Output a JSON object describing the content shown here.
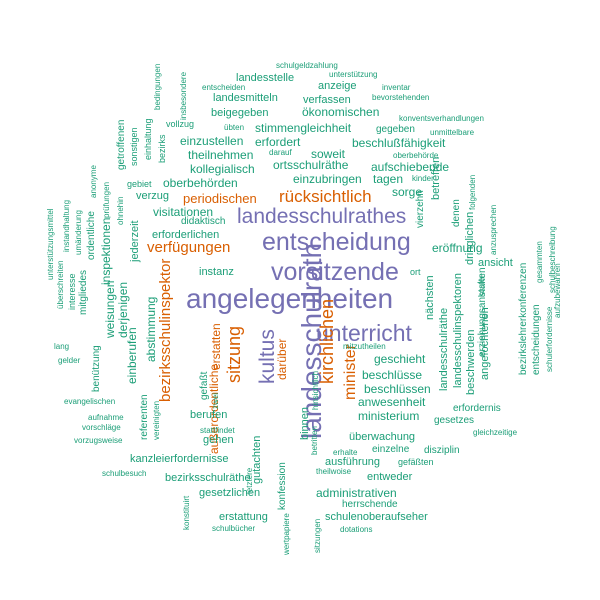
{
  "palette": {
    "purple": "#7570b3",
    "orange": "#d95f02",
    "teal": "#1b9e77"
  },
  "words": [
    {
      "t": "angelegenheiten",
      "c": "purple"
    },
    {
      "t": "entscheidung",
      "c": "purple"
    },
    {
      "t": "vorsitzende",
      "c": "purple"
    },
    {
      "t": "landesschulrath",
      "c": "purple"
    },
    {
      "t": "landesschulrathes",
      "c": "purple"
    },
    {
      "t": "unterricht",
      "c": "purple"
    },
    {
      "t": "kultus",
      "c": "purple"
    },
    {
      "t": "rücksichtlich",
      "c": "orange"
    },
    {
      "t": "verfügungen",
      "c": "orange"
    },
    {
      "t": "sitzung",
      "c": "orange"
    },
    {
      "t": "kirchlichen",
      "c": "orange"
    },
    {
      "t": "minister",
      "c": "orange"
    },
    {
      "t": "bezirksschulinspektor",
      "c": "orange"
    },
    {
      "t": "periodischen",
      "c": "orange"
    },
    {
      "t": "außerordentliche",
      "c": "orange"
    },
    {
      "t": "erstatten",
      "c": "orange"
    },
    {
      "t": "darüber",
      "c": "orange"
    },
    {
      "t": "schulgeldzahlung",
      "c": "teal"
    },
    {
      "t": "unterstützung",
      "c": "teal"
    },
    {
      "t": "inventar",
      "c": "teal"
    },
    {
      "t": "bevorstehenden",
      "c": "teal"
    },
    {
      "t": "insbesondere",
      "c": "teal"
    },
    {
      "t": "entscheiden",
      "c": "teal"
    },
    {
      "t": "landesstelle",
      "c": "teal"
    },
    {
      "t": "anzeige",
      "c": "teal"
    },
    {
      "t": "landesmitteln",
      "c": "teal"
    },
    {
      "t": "verfassen",
      "c": "teal"
    },
    {
      "t": "ökonomischen",
      "c": "teal"
    },
    {
      "t": "beigegeben",
      "c": "teal"
    },
    {
      "t": "konventsverhandlungen",
      "c": "teal"
    },
    {
      "t": "bedingungen",
      "c": "teal"
    },
    {
      "t": "vollzug",
      "c": "teal"
    },
    {
      "t": "übten",
      "c": "teal"
    },
    {
      "t": "stimmengleichheit",
      "c": "teal"
    },
    {
      "t": "gegeben",
      "c": "teal"
    },
    {
      "t": "unmittelbare",
      "c": "teal"
    },
    {
      "t": "einhaltung",
      "c": "teal"
    },
    {
      "t": "einzustellen",
      "c": "teal"
    },
    {
      "t": "erfordert",
      "c": "teal"
    },
    {
      "t": "beschlußfähigkeit",
      "c": "teal"
    },
    {
      "t": "bezirks",
      "c": "teal"
    },
    {
      "t": "sonstigen",
      "c": "teal"
    },
    {
      "t": "getroffenen",
      "c": "teal"
    },
    {
      "t": "theilnehmen",
      "c": "teal"
    },
    {
      "t": "darauf",
      "c": "teal"
    },
    {
      "t": "soweit",
      "c": "teal"
    },
    {
      "t": "oberbehörde",
      "c": "teal"
    },
    {
      "t": "kollegialisch",
      "c": "teal"
    },
    {
      "t": "ortsschulräthe",
      "c": "teal"
    },
    {
      "t": "aufschiebende",
      "c": "teal"
    },
    {
      "t": "anonyme",
      "c": "teal"
    },
    {
      "t": "prüfungen",
      "c": "teal"
    },
    {
      "t": "ohnehin",
      "c": "teal"
    },
    {
      "t": "gebiet",
      "c": "teal"
    },
    {
      "t": "oberbehörden",
      "c": "teal"
    },
    {
      "t": "einzubringen",
      "c": "teal"
    },
    {
      "t": "tagen",
      "c": "teal"
    },
    {
      "t": "kinder",
      "c": "teal"
    },
    {
      "t": "folgenden",
      "c": "teal"
    },
    {
      "t": "verzug",
      "c": "teal"
    },
    {
      "t": "sorge",
      "c": "teal"
    },
    {
      "t": "betreffen",
      "c": "teal"
    },
    {
      "t": "vierzehn",
      "c": "teal"
    },
    {
      "t": "visitationen",
      "c": "teal"
    },
    {
      "t": "unterstützungsmittel",
      "c": "teal"
    },
    {
      "t": "instandhaltung",
      "c": "teal"
    },
    {
      "t": "umänderung",
      "c": "teal"
    },
    {
      "t": "ordentliche",
      "c": "teal"
    },
    {
      "t": "inspektionen",
      "c": "teal"
    },
    {
      "t": "jederzeit",
      "c": "teal"
    },
    {
      "t": "didaktisch",
      "c": "teal"
    },
    {
      "t": "erforderlichen",
      "c": "teal"
    },
    {
      "t": "denen",
      "c": "teal"
    },
    {
      "t": "dringlichen",
      "c": "teal"
    },
    {
      "t": "anzusprechen",
      "c": "teal"
    },
    {
      "t": "erziehungsanstalten",
      "c": "teal"
    },
    {
      "t": "eröffnung",
      "c": "teal"
    },
    {
      "t": "instanz",
      "c": "teal"
    },
    {
      "t": "ort",
      "c": "teal"
    },
    {
      "t": "ansicht",
      "c": "teal"
    },
    {
      "t": "schulbeschreibung",
      "c": "teal"
    },
    {
      "t": "gesammten",
      "c": "teal"
    },
    {
      "t": "überschreiten",
      "c": "teal"
    },
    {
      "t": "interesse",
      "c": "teal"
    },
    {
      "t": "mitgliedes",
      "c": "teal"
    },
    {
      "t": "weisungen",
      "c": "teal"
    },
    {
      "t": "derjenigen",
      "c": "teal"
    },
    {
      "t": "nächsten",
      "c": "teal"
    },
    {
      "t": "landesschulräthe",
      "c": "teal"
    },
    {
      "t": "landesschulinspektoren",
      "c": "teal"
    },
    {
      "t": "beschwerden",
      "c": "teal"
    },
    {
      "t": "angefochtenen",
      "c": "teal"
    },
    {
      "t": "kosten",
      "c": "teal"
    },
    {
      "t": "aufzubewahren",
      "c": "teal"
    },
    {
      "t": "bezirkslehrerkonferenzen",
      "c": "teal"
    },
    {
      "t": "entscheidungen",
      "c": "teal"
    },
    {
      "t": "schulerfordernisse",
      "c": "teal"
    },
    {
      "t": "lang",
      "c": "teal"
    },
    {
      "t": "abstimmung",
      "c": "teal"
    },
    {
      "t": "einberufen",
      "c": "teal"
    },
    {
      "t": "benützung",
      "c": "teal"
    },
    {
      "t": "gelder",
      "c": "teal"
    },
    {
      "t": "gefaßt",
      "c": "teal"
    },
    {
      "t": "mitzutheilen",
      "c": "teal"
    },
    {
      "t": "geschieht",
      "c": "teal"
    },
    {
      "t": "beschlüsse",
      "c": "teal"
    },
    {
      "t": "beschlüssen",
      "c": "teal"
    },
    {
      "t": "anwesenheit",
      "c": "teal"
    },
    {
      "t": "hinsichtlich",
      "c": "teal"
    },
    {
      "t": "evangelischen",
      "c": "teal"
    },
    {
      "t": "referenten",
      "c": "teal"
    },
    {
      "t": "vereinigten",
      "c": "teal"
    },
    {
      "t": "zwei",
      "c": "teal"
    },
    {
      "t": "berufen",
      "c": "teal"
    },
    {
      "t": "ministerium",
      "c": "teal"
    },
    {
      "t": "erfordernis",
      "c": "teal"
    },
    {
      "t": "aufnahme",
      "c": "teal"
    },
    {
      "t": "vorschläge",
      "c": "teal"
    },
    {
      "t": "stattfindet",
      "c": "teal"
    },
    {
      "t": "gehen",
      "c": "teal"
    },
    {
      "t": "gesetzes",
      "c": "teal"
    },
    {
      "t": "gleichzeitige",
      "c": "teal"
    },
    {
      "t": "vorzugsweise",
      "c": "teal"
    },
    {
      "t": "überwachung",
      "c": "teal"
    },
    {
      "t": "binnen",
      "c": "teal"
    },
    {
      "t": "einzelne",
      "c": "teal"
    },
    {
      "t": "disziplin",
      "c": "teal"
    },
    {
      "t": "kanzleierfordernisse",
      "c": "teal"
    },
    {
      "t": "gutachten",
      "c": "teal"
    },
    {
      "t": "betritten",
      "c": "teal"
    },
    {
      "t": "erhalte",
      "c": "teal"
    },
    {
      "t": "gefäßten",
      "c": "teal"
    },
    {
      "t": "ausführung",
      "c": "teal"
    },
    {
      "t": "schulbesuch",
      "c": "teal"
    },
    {
      "t": "bezirksschulräthe",
      "c": "teal"
    },
    {
      "t": "theilwoise",
      "c": "teal"
    },
    {
      "t": "entweder",
      "c": "teal"
    },
    {
      "t": "gesetzlichen",
      "c": "teal"
    },
    {
      "t": "konfession",
      "c": "teal"
    },
    {
      "t": "administrativen",
      "c": "teal"
    },
    {
      "t": "letztere",
      "c": "teal"
    },
    {
      "t": "konstituirt",
      "c": "teal"
    },
    {
      "t": "herrschende",
      "c": "teal"
    },
    {
      "t": "erstattung",
      "c": "teal"
    },
    {
      "t": "schulenoberaufseher",
      "c": "teal"
    },
    {
      "t": "schulbücher",
      "c": "teal"
    },
    {
      "t": "wertpapiere",
      "c": "teal"
    },
    {
      "t": "sitzungen",
      "c": "teal"
    },
    {
      "t": "dotations",
      "c": "teal"
    }
  ]
}
